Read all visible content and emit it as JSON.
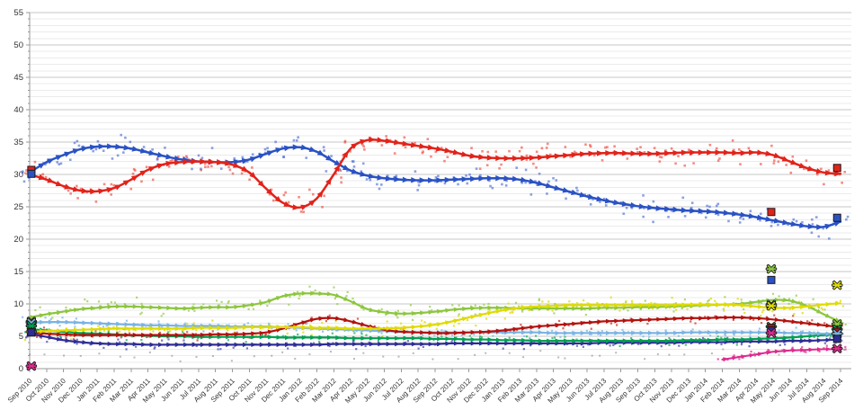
{
  "chart_data": {
    "type": "scatter",
    "subtype": "poll-tracker-with-smoothed-trend-lines",
    "title": "",
    "grid": "minor gridlines every 1 unit, major every 5",
    "legend": "none visible",
    "y_axis": {
      "min": 0,
      "max": 55,
      "tick_step": 5,
      "minor_step": 1,
      "tick_labels": [
        "0",
        "5",
        "10",
        "15",
        "20",
        "25",
        "30",
        "35",
        "40",
        "45",
        "50",
        "55"
      ]
    },
    "x_axis": {
      "labels": [
        "Sep 2010",
        "Oct 2010",
        "Nov 2010",
        "Dec 2010",
        "Jan 2011",
        "Feb 2011",
        "Mar 2011",
        "Apr 2011",
        "May 2011",
        "Jun 2011",
        "Jul 2011",
        "Aug 2011",
        "Sep 2011",
        "Oct 2011",
        "Nov 2011",
        "Dec 2011",
        "Jan 2012",
        "Feb 2012",
        "Mar 2012",
        "Apr 2012",
        "May 2012",
        "Jun 2012",
        "Jul 2012",
        "Aug 2012",
        "Sep 2012",
        "Oct 2012",
        "Nov 2012",
        "Dec 2012",
        "Jan 2013",
        "Feb 2013",
        "Mar 2013",
        "Apr 2013",
        "May 2013",
        "Jun 2013",
        "Jul 2013",
        "Aug 2013",
        "Sep 2013",
        "Oct 2013",
        "Nov 2013",
        "Dec 2013",
        "Jan 2014",
        "Feb 2014",
        "Mar 2014",
        "Apr 2014",
        "May 2014",
        "Jun 2014",
        "Jul 2014",
        "Aug 2014",
        "Sep 2014"
      ]
    },
    "series": [
      {
        "name": "red-line",
        "color": "#e2231a",
        "scatter_color": "#ee4438",
        "line_width": 2.5,
        "arrow_scale": 1.25,
        "scatter": {
          "per_month": 4,
          "spread": 1.35,
          "size": 2.6,
          "opacity": 0.62
        },
        "values": [
          30.0,
          29.2,
          28.2,
          27.5,
          27.4,
          27.9,
          29.2,
          30.7,
          31.6,
          31.9,
          32.0,
          31.9,
          31.5,
          30.3,
          27.8,
          25.6,
          24.9,
          26.3,
          30.0,
          34.0,
          35.3,
          35.2,
          34.8,
          34.4,
          34.0,
          33.5,
          32.9,
          32.6,
          32.5,
          32.5,
          32.6,
          32.8,
          33.0,
          33.2,
          33.3,
          33.3,
          33.2,
          33.2,
          33.3,
          33.4,
          33.4,
          33.4,
          33.3,
          33.4,
          33.0,
          32.0,
          31.0,
          30.3,
          30.1
        ]
      },
      {
        "name": "blue-line",
        "color": "#2a52c4",
        "scatter_color": "#4668d2",
        "line_width": 2.5,
        "arrow_scale": 1.25,
        "scatter": {
          "per_month": 4,
          "spread": 1.35,
          "size": 2.6,
          "opacity": 0.62
        },
        "values": [
          30.3,
          31.9,
          33.0,
          33.9,
          34.3,
          34.3,
          34.0,
          33.4,
          32.8,
          32.3,
          32.0,
          31.9,
          31.9,
          32.3,
          33.2,
          34.0,
          34.2,
          33.5,
          32.0,
          30.6,
          29.8,
          29.4,
          29.2,
          29.1,
          29.1,
          29.2,
          29.3,
          29.4,
          29.4,
          29.2,
          28.7,
          28.0,
          27.3,
          26.6,
          26.0,
          25.5,
          25.1,
          24.8,
          24.6,
          24.4,
          24.3,
          24.1,
          23.8,
          23.4,
          22.9,
          22.4,
          22.0,
          21.9,
          22.7
        ]
      },
      {
        "name": "light-green-line",
        "color": "#8cc63e",
        "scatter_color": "#9dcf55",
        "line_width": 2.2,
        "arrow_scale": 1.0,
        "scatter": {
          "per_month": 3,
          "spread": 0.9,
          "size": 2.2,
          "opacity": 0.8
        },
        "values": [
          7.9,
          8.4,
          8.8,
          9.2,
          9.4,
          9.6,
          9.6,
          9.5,
          9.4,
          9.3,
          9.4,
          9.5,
          9.5,
          9.8,
          10.3,
          11.2,
          11.6,
          11.6,
          11.4,
          10.4,
          9.2,
          8.7,
          8.5,
          8.6,
          8.8,
          9.1,
          9.3,
          9.4,
          9.4,
          9.3,
          9.3,
          9.3,
          9.3,
          9.3,
          9.4,
          9.4,
          9.5,
          9.5,
          9.6,
          9.7,
          9.8,
          9.9,
          10.0,
          10.3,
          10.6,
          10.5,
          9.7,
          8.4,
          7.2
        ]
      },
      {
        "name": "yellow-line",
        "color": "#dfdb00",
        "scatter_color": "#e3de1c",
        "line_width": 2.2,
        "arrow_scale": 1.0,
        "scatter": {
          "per_month": 3,
          "spread": 0.85,
          "size": 2.2,
          "opacity": 0.85
        },
        "values": [
          5.7,
          5.8,
          5.9,
          6.0,
          6.1,
          6.2,
          6.2,
          6.2,
          6.2,
          6.2,
          6.3,
          6.3,
          6.3,
          6.4,
          6.4,
          6.4,
          6.4,
          6.3,
          6.3,
          6.2,
          6.2,
          6.2,
          6.3,
          6.5,
          6.8,
          7.3,
          7.9,
          8.5,
          9.0,
          9.4,
          9.6,
          9.7,
          9.8,
          9.8,
          9.8,
          9.8,
          9.8,
          9.8,
          9.8,
          9.9,
          9.9,
          9.9,
          9.8,
          9.6,
          9.4,
          9.4,
          9.6,
          9.9,
          10.1
        ]
      },
      {
        "name": "dark-red-line",
        "color": "#b3120f",
        "scatter_color": "#c22a1e",
        "line_width": 2.2,
        "arrow_scale": 1.0,
        "scatter": {
          "per_month": 2,
          "spread": 0.6,
          "size": 2.2,
          "opacity": 0.7
        },
        "values": [
          5.6,
          5.4,
          5.3,
          5.2,
          5.2,
          5.2,
          5.2,
          5.2,
          5.2,
          5.2,
          5.2,
          5.3,
          5.3,
          5.4,
          5.6,
          6.2,
          7.0,
          7.7,
          7.8,
          7.3,
          6.6,
          6.0,
          5.7,
          5.6,
          5.5,
          5.5,
          5.6,
          5.7,
          5.9,
          6.2,
          6.5,
          6.7,
          6.9,
          7.1,
          7.3,
          7.4,
          7.5,
          7.6,
          7.7,
          7.8,
          7.8,
          7.9,
          7.9,
          7.8,
          7.6,
          7.3,
          7.0,
          6.7,
          6.4
        ]
      },
      {
        "name": "light-blue-line",
        "color": "#7ab3e5",
        "scatter_color": "#8bbde9",
        "line_width": 2.2,
        "arrow_scale": 1.0,
        "scatter": {
          "per_month": 2,
          "spread": 0.6,
          "size": 2.2,
          "opacity": 0.85
        },
        "values": [
          7.1,
          7.2,
          7.2,
          7.1,
          7.0,
          6.9,
          6.8,
          6.7,
          6.7,
          6.6,
          6.6,
          6.6,
          6.5,
          6.5,
          6.5,
          6.4,
          6.3,
          6.2,
          6.1,
          6.0,
          5.9,
          5.8,
          5.7,
          5.6,
          5.6,
          5.6,
          5.6,
          5.6,
          5.6,
          5.6,
          5.6,
          5.5,
          5.5,
          5.5,
          5.5,
          5.5,
          5.5,
          5.5,
          5.5,
          5.6,
          5.6,
          5.6,
          5.6,
          5.6,
          5.6,
          5.5,
          5.5,
          5.4,
          5.4
        ]
      },
      {
        "name": "green-line",
        "color": "#00a050",
        "scatter_color": "#23ab62",
        "line_width": 2.2,
        "arrow_scale": 1.0,
        "scatter": {
          "per_month": 2,
          "spread": 0.55,
          "size": 2.2,
          "opacity": 0.75
        },
        "values": [
          6.1,
          5.9,
          5.7,
          5.5,
          5.4,
          5.3,
          5.2,
          5.1,
          5.0,
          5.0,
          4.9,
          4.9,
          4.9,
          4.9,
          4.9,
          4.8,
          4.8,
          4.8,
          4.8,
          4.7,
          4.7,
          4.7,
          4.7,
          4.7,
          4.6,
          4.6,
          4.5,
          4.5,
          4.4,
          4.4,
          4.3,
          4.3,
          4.3,
          4.3,
          4.3,
          4.3,
          4.3,
          4.3,
          4.3,
          4.4,
          4.4,
          4.5,
          4.5,
          4.6,
          4.7,
          4.8,
          5.0,
          5.2,
          5.4
        ]
      },
      {
        "name": "dark-blue-line",
        "color": "#2d2d96",
        "scatter_color": "#3d3da6",
        "line_width": 2.2,
        "arrow_scale": 1.0,
        "scatter": {
          "per_month": 2,
          "spread": 0.6,
          "size": 2.2,
          "opacity": 0.7
        },
        "values": [
          5.4,
          4.9,
          4.4,
          4.1,
          3.9,
          3.8,
          3.8,
          3.7,
          3.7,
          3.7,
          3.7,
          3.7,
          3.7,
          3.7,
          3.7,
          3.7,
          3.7,
          3.7,
          3.8,
          3.8,
          3.8,
          3.8,
          3.8,
          3.8,
          3.8,
          3.9,
          3.9,
          3.9,
          3.9,
          3.9,
          3.9,
          3.9,
          3.9,
          3.9,
          4.0,
          4.0,
          4.0,
          4.0,
          4.0,
          4.1,
          4.1,
          4.1,
          4.2,
          4.2,
          4.2,
          4.3,
          4.3,
          4.4,
          4.5
        ]
      },
      {
        "name": "pink-line",
        "color": "#dd2a8e",
        "scatter_color": "#e4459e",
        "line_width": 2.0,
        "arrow_scale": 0.95,
        "scatter": {
          "per_month": 3,
          "spread": 0.45,
          "size": 2.2,
          "opacity": 0.85
        },
        "values": [
          null,
          null,
          null,
          null,
          null,
          null,
          null,
          null,
          null,
          null,
          null,
          null,
          null,
          null,
          null,
          null,
          null,
          null,
          null,
          null,
          null,
          null,
          null,
          null,
          null,
          null,
          null,
          null,
          null,
          null,
          null,
          null,
          null,
          null,
          null,
          null,
          null,
          null,
          null,
          null,
          null,
          1.4,
          1.8,
          2.2,
          2.6,
          2.8,
          2.9,
          3.0,
          3.0
        ]
      }
    ],
    "extra_scatter": {
      "name": "gray-dots",
      "color": "#808080",
      "per_month": 1,
      "base_value": 2.1,
      "spread": 0.8,
      "size": 2.0,
      "opacity": 0.55
    },
    "election_result_markers": [
      {
        "name": "left-edge-results",
        "month_x": 0.1,
        "results": [
          {
            "series": "red-line",
            "value": 30.7,
            "marker": "square"
          },
          {
            "series": "blue-line",
            "value": 30.1,
            "marker": "square"
          },
          {
            "series": "light-green-line",
            "value": 7.3,
            "marker": "cross"
          },
          {
            "series": "light-blue-line",
            "value": 7.1,
            "marker": "cross"
          },
          {
            "series": "green-line",
            "value": 6.6,
            "marker": "cross"
          },
          {
            "series": "yellow-line",
            "value": 5.7,
            "marker": "cross"
          },
          {
            "series": "dark-red-line",
            "value": 5.6,
            "marker": "square"
          },
          {
            "series": "dark-blue-line",
            "value": 5.6,
            "marker": "square"
          },
          {
            "series": "pink-line",
            "value": 0.4,
            "marker": "cross"
          }
        ]
      },
      {
        "name": "may-2014-results",
        "month_x": 43.9,
        "results": [
          {
            "series": "red-line",
            "value": 24.2,
            "marker": "square"
          },
          {
            "series": "light-green-line",
            "value": 15.4,
            "marker": "cross"
          },
          {
            "series": "blue-line",
            "value": 13.7,
            "marker": "square"
          },
          {
            "series": "light-blue-line",
            "value": 9.9,
            "marker": "cross"
          },
          {
            "series": "yellow-line",
            "value": 9.7,
            "marker": "cross"
          },
          {
            "series": "green-line",
            "value": 6.5,
            "marker": "cross"
          },
          {
            "series": "dark-red-line",
            "value": 6.3,
            "marker": "square"
          },
          {
            "series": "dark-blue-line",
            "value": 5.9,
            "marker": "square"
          },
          {
            "series": "pink-line",
            "value": 5.5,
            "marker": "cross"
          }
        ]
      },
      {
        "name": "right-edge-results",
        "month_x": 47.8,
        "results": [
          {
            "series": "red-line",
            "value": 31.0,
            "marker": "square"
          },
          {
            "series": "blue-line",
            "value": 23.3,
            "marker": "square"
          },
          {
            "series": "yellow-line",
            "value": 12.9,
            "marker": "cross"
          },
          {
            "series": "light-green-line",
            "value": 6.9,
            "marker": "cross"
          },
          {
            "series": "green-line",
            "value": 6.1,
            "marker": "cross"
          },
          {
            "series": "dark-red-line",
            "value": 5.7,
            "marker": "square"
          },
          {
            "series": "light-blue-line",
            "value": 5.4,
            "marker": "cross"
          },
          {
            "series": "dark-blue-line",
            "value": 4.6,
            "marker": "square"
          },
          {
            "series": "pink-line",
            "value": 3.1,
            "marker": "cross"
          }
        ]
      }
    ],
    "colors": {
      "minor_gridline": "#ebebeb",
      "major_gridline": "#c7c7c7",
      "axis_line": "#9a9a9a",
      "tick": "#9a9a9a",
      "label_text": "#333333",
      "marker_outline": "#1a1a1a",
      "background": "#ffffff"
    }
  }
}
